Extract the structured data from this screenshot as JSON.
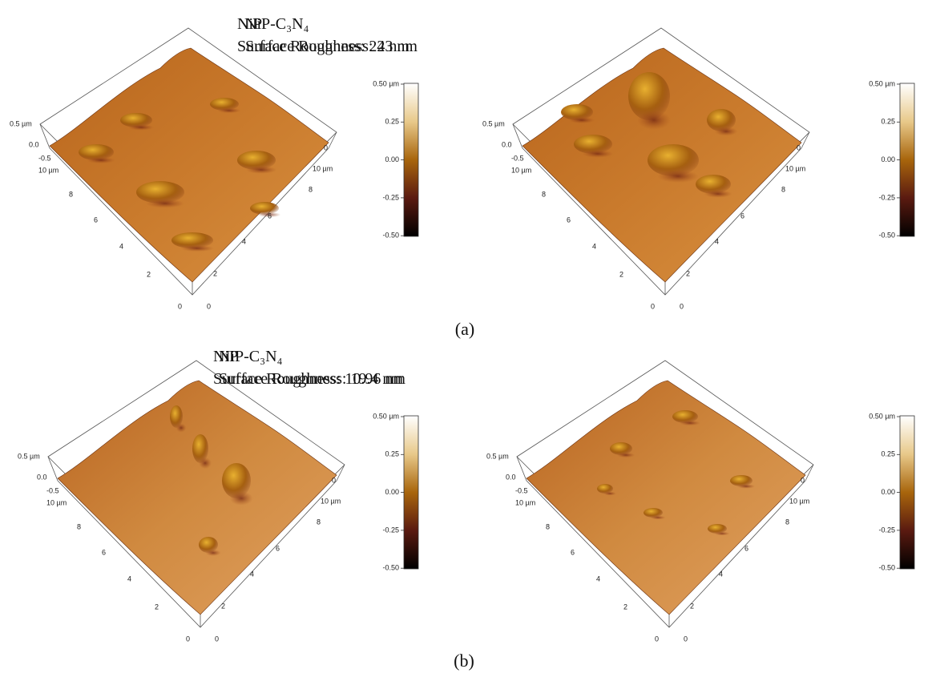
{
  "panels": [
    {
      "title": "NiP",
      "roughness": "Surface Roughness: 22 nm"
    },
    {
      "title": "NiP-C₃N₄",
      "roughness": "Surface Roughness: 43 nm"
    },
    {
      "title": "NiP",
      "roughness": "Surface Roughness: 10.96 nm"
    },
    {
      "title": "NiP-C₃N₄",
      "roughness": "Surface Roughness: 19.4 nm"
    }
  ],
  "z_axis": [
    "0.5 µm",
    "0.0",
    "-0.5",
    "10 µm"
  ],
  "left_axis": [
    "8",
    "6",
    "4",
    "2",
    "0"
  ],
  "right_axis": [
    "0",
    "10 µm",
    "8",
    "6",
    "4",
    "2",
    "0"
  ],
  "colorbar": [
    "0.50 µm",
    "0.25",
    "0.00",
    "-0.25",
    "-0.50"
  ],
  "figure_labels": [
    "(a)",
    "(b)"
  ]
}
